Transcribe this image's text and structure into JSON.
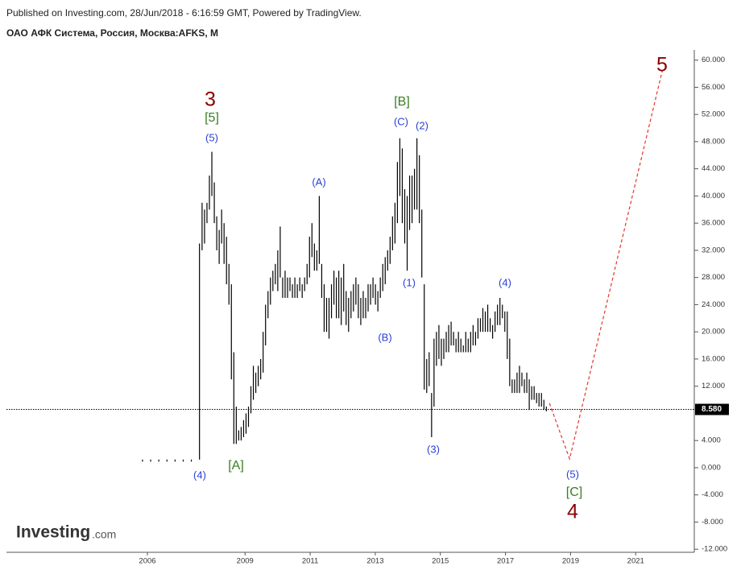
{
  "chart_data": {
    "type": "ohlc",
    "published": "Published on Investing.com, 28/Jun/2018 - 6:16:59 GMT, Powered by TradingView.",
    "title": "ОАО АФК Система, Россия, Москва:AFKS, M",
    "logo": "Investing",
    "logo_suffix": ".com",
    "color": "#000000",
    "projection_color": "#e8332a",
    "xlim": [
      2001.67,
      2022.8
    ],
    "ylim": [
      -12.45,
      61.5
    ],
    "xticks": [
      2006,
      2009,
      2011,
      2013,
      2015,
      2017,
      2019,
      2021
    ],
    "yticks": [
      {
        "value": 60,
        "label": "60.000"
      },
      {
        "value": 56,
        "label": "56.000"
      },
      {
        "value": 52,
        "label": "52.000"
      },
      {
        "value": 48,
        "label": "48.000"
      },
      {
        "value": 44,
        "label": "44.000"
      },
      {
        "value": 40,
        "label": "40.000"
      },
      {
        "value": 36,
        "label": "36.000"
      },
      {
        "value": 32,
        "label": "32.000"
      },
      {
        "value": 28,
        "label": "28.000"
      },
      {
        "value": 24,
        "label": "24.000"
      },
      {
        "value": 20,
        "label": "20.000"
      },
      {
        "value": 16,
        "label": "16.000"
      },
      {
        "value": 12,
        "label": "12.000"
      },
      {
        "value": 4,
        "label": "4.000"
      },
      {
        "value": 0,
        "label": "0.000"
      },
      {
        "value": -4,
        "label": "-4.000"
      },
      {
        "value": -8,
        "label": "-8.000"
      },
      {
        "value": -12,
        "label": "-12.000"
      }
    ],
    "last_price": {
      "value": 8.58,
      "label": "8.580"
    },
    "x": [
      2005.85,
      2006.1,
      2006.35,
      2006.6,
      2006.85,
      2007.1,
      2007.35,
      2007.6,
      2007.68,
      2007.755,
      2007.83,
      2007.905,
      2007.98,
      2008.055,
      2008.13,
      2008.205,
      2008.28,
      2008.355,
      2008.43,
      2008.505,
      2008.58,
      2008.655,
      2008.73,
      2008.805,
      2008.88,
      2008.955,
      2009.03,
      2009.105,
      2009.18,
      2009.255,
      2009.33,
      2009.405,
      2009.48,
      2009.555,
      2009.63,
      2009.705,
      2009.78,
      2009.855,
      2009.93,
      2010.005,
      2010.08,
      2010.155,
      2010.23,
      2010.305,
      2010.38,
      2010.455,
      2010.53,
      2010.605,
      2010.68,
      2010.755,
      2010.83,
      2010.905,
      2010.98,
      2011.055,
      2011.13,
      2011.205,
      2011.28,
      2011.355,
      2011.43,
      2011.505,
      2011.58,
      2011.655,
      2011.73,
      2011.805,
      2011.88,
      2011.955,
      2012.03,
      2012.105,
      2012.18,
      2012.255,
      2012.33,
      2012.405,
      2012.48,
      2012.555,
      2012.63,
      2012.705,
      2012.78,
      2012.855,
      2012.93,
      2013.005,
      2013.08,
      2013.155,
      2013.23,
      2013.305,
      2013.38,
      2013.455,
      2013.53,
      2013.605,
      2013.68,
      2013.755,
      2013.83,
      2013.905,
      2013.98,
      2014.055,
      2014.13,
      2014.205,
      2014.28,
      2014.355,
      2014.43,
      2014.505,
      2014.58,
      2014.655,
      2014.73,
      2014.805,
      2014.88,
      2014.955,
      2015.03,
      2015.105,
      2015.18,
      2015.255,
      2015.33,
      2015.405,
      2015.48,
      2015.555,
      2015.63,
      2015.705,
      2015.78,
      2015.855,
      2015.93,
      2016.005,
      2016.08,
      2016.155,
      2016.23,
      2016.305,
      2016.38,
      2016.455,
      2016.53,
      2016.605,
      2016.68,
      2016.755,
      2016.83,
      2016.905,
      2016.98,
      2017.055,
      2017.13,
      2017.205,
      2017.28,
      2017.355,
      2017.43,
      2017.505,
      2017.58,
      2017.655,
      2017.73,
      2017.805,
      2017.88,
      2017.955,
      2018.03,
      2018.105,
      2018.18,
      2018.255
    ],
    "high": [
      1.2,
      1.2,
      1.2,
      1.2,
      1.2,
      1.2,
      1.2,
      33,
      39,
      38,
      39,
      43,
      46.5,
      42,
      37,
      35,
      38,
      36,
      34,
      30,
      27,
      17,
      9,
      5.5,
      6,
      7,
      8,
      9,
      12,
      15,
      14,
      15,
      16,
      20,
      24,
      26,
      28,
      29,
      30,
      32,
      35.5,
      28,
      29,
      28,
      28,
      27,
      28,
      27,
      28,
      27,
      28,
      30,
      34,
      36,
      33,
      32,
      40,
      30,
      27,
      25,
      25,
      27,
      29,
      28,
      29,
      28,
      30,
      26,
      25,
      26,
      27,
      28,
      27,
      25,
      26,
      25,
      27,
      27,
      28,
      27,
      26,
      28,
      30,
      31,
      32,
      34,
      37,
      39,
      45,
      48.5,
      47,
      41,
      40,
      43,
      43,
      44,
      48.5,
      46,
      38,
      27,
      16,
      17,
      11,
      19,
      20,
      21,
      19,
      19,
      20,
      21,
      21.5,
      20,
      19,
      20,
      19,
      18,
      20,
      19,
      20,
      21,
      20,
      22,
      22,
      23.5,
      23,
      24,
      22,
      21,
      23,
      24,
      25,
      24,
      23,
      23,
      19,
      13,
      13,
      14,
      15,
      14,
      13,
      14,
      13,
      12,
      12,
      11,
      11,
      11,
      10,
      9
    ],
    "low": [
      0.9,
      0.9,
      0.9,
      0.9,
      0.9,
      0.9,
      0.9,
      1.2,
      32,
      33,
      36,
      38,
      40,
      36,
      32,
      30,
      33,
      30,
      27,
      24,
      13,
      3.5,
      3.5,
      4,
      4,
      4.5,
      5,
      6,
      8,
      10,
      11,
      12,
      13,
      14,
      18,
      22,
      24,
      26,
      27,
      26,
      28,
      25,
      25,
      25,
      26,
      25,
      25,
      25,
      26,
      25,
      26,
      27,
      28,
      31,
      29,
      29,
      30,
      25,
      20,
      20,
      19,
      22,
      24,
      22,
      22,
      21,
      23,
      21,
      20,
      22,
      23,
      24,
      22,
      21,
      22,
      22,
      23,
      24,
      25,
      24,
      23,
      25,
      26,
      27,
      29,
      30,
      32,
      33,
      36,
      40,
      36,
      33,
      29,
      35,
      36,
      38,
      38,
      36,
      28,
      11.5,
      11,
      12,
      4.5,
      9,
      15,
      16,
      15,
      16,
      17,
      17,
      18,
      18,
      17,
      17,
      17,
      17,
      17,
      17,
      17,
      18,
      18,
      19,
      20,
      20,
      20,
      20,
      20,
      19,
      20,
      21,
      21,
      22,
      20,
      16,
      12,
      11,
      11,
      11,
      11,
      12,
      11,
      11,
      8.5,
      10,
      10,
      9.5,
      9,
      9,
      8.5,
      8.3
    ],
    "projection": {
      "x": [
        2018.35,
        2018.97,
        2021.82
      ],
      "values": [
        9.5,
        1.3,
        58.5
      ]
    },
    "annotations": [
      {
        "text": "3",
        "color": "#8b0000"
      },
      {
        "text": "[5]",
        "color": "#3a7d22"
      },
      {
        "text": "(5)",
        "color": "#2b3fd6"
      },
      {
        "text": "(4)",
        "color": "#2b3fd6"
      },
      {
        "text": "[A]",
        "color": "#3a7d22"
      },
      {
        "text": "(A)",
        "color": "#2b3fd6"
      },
      {
        "text": "(B)",
        "color": "#2b3fd6"
      },
      {
        "text": "[B]",
        "color": "#3a7d22"
      },
      {
        "text": "(C)",
        "color": "#2b3fd6"
      },
      {
        "text": "(2)",
        "color": "#2b3fd6"
      },
      {
        "text": "(1)",
        "color": "#2b3fd6"
      },
      {
        "text": "(3)",
        "color": "#2b3fd6"
      },
      {
        "text": "(4)",
        "color": "#2b3fd6"
      },
      {
        "text": "(5)",
        "color": "#2b3fd6"
      },
      {
        "text": "[C]",
        "color": "#3a7d22"
      },
      {
        "text": "4",
        "color": "#8b0000"
      },
      {
        "text": "5",
        "color": "#8b0000"
      }
    ]
  }
}
